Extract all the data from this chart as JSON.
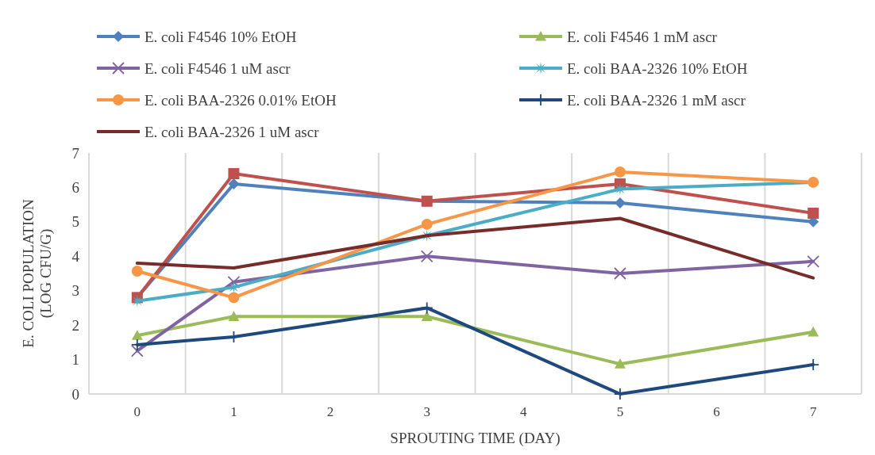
{
  "chart_data": {
    "type": "line",
    "xlabel": "SPROUTING TIME (DAY)",
    "ylabel": "E. COLI POPULATION\n(LOG CFU/G)",
    "categories": [
      "0",
      "1",
      "2",
      "3",
      "4",
      "5",
      "6",
      "7"
    ],
    "ylim": [
      0,
      7
    ],
    "yticks": [
      0,
      1,
      2,
      3,
      4,
      5,
      6,
      7
    ],
    "grid": "x",
    "legend": "top",
    "series": [
      {
        "name": "E. coli F4546 10% EtOH",
        "color": "#4f81bd",
        "marker": "diamond",
        "values": [
          2.8,
          6.1,
          null,
          5.6,
          null,
          5.55,
          null,
          5.0
        ]
      },
      {
        "color": "#c0504d",
        "marker": "square",
        "values": [
          2.8,
          6.4,
          null,
          5.6,
          null,
          6.1,
          null,
          5.25
        ]
      },
      {
        "name": "E. coli F4546 1 mM ascr",
        "color": "#9bbb59",
        "marker": "triangle",
        "values": [
          1.7,
          2.25,
          null,
          2.25,
          null,
          0.87,
          null,
          1.8
        ]
      },
      {
        "name": "E. coli F4546 1 uM ascr",
        "color": "#8064a2",
        "marker": "cross",
        "values": [
          1.25,
          3.25,
          null,
          4.0,
          null,
          3.5,
          null,
          3.85
        ]
      },
      {
        "name": "E. coli BAA-2326 10% EtOH",
        "color": "#4bacc6",
        "marker": "star",
        "values": [
          2.7,
          3.1,
          null,
          4.6,
          null,
          5.95,
          null,
          6.15
        ]
      },
      {
        "name": "E. coli BAA-2326 0.01% EtOH",
        "color": "#f79646",
        "marker": "circle",
        "values": [
          3.57,
          2.8,
          null,
          4.93,
          null,
          6.45,
          null,
          6.15
        ]
      },
      {
        "name": "E. coli BAA-2326 1 mM ascr",
        "color": "#1f497d",
        "marker": "plus",
        "values": [
          1.43,
          1.66,
          null,
          2.5,
          null,
          0,
          null,
          0.85
        ]
      },
      {
        "name": "E. coli BAA-2326 1 uM ascr",
        "color": "#772c2a",
        "marker": "none",
        "values": [
          3.8,
          3.66,
          null,
          4.6,
          null,
          5.1,
          null,
          3.37
        ]
      }
    ]
  }
}
